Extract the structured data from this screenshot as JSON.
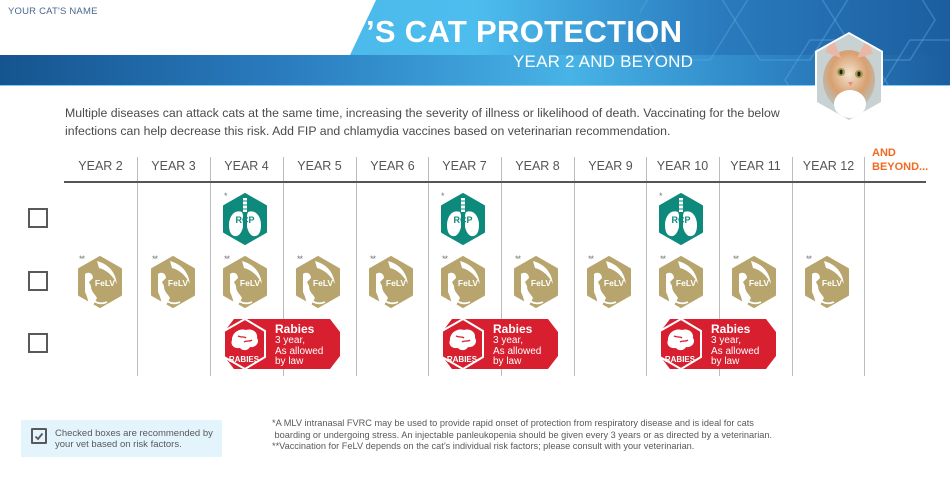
{
  "header": {
    "cat_name_label": "YOUR CAT'S NAME",
    "title": "’S CAT PROTECTION",
    "subtitle": "YEAR 2 AND BEYOND",
    "photo_alt": "orange-and-white kitten looking up"
  },
  "intro": "Multiple diseases can attack cats at the same time, increasing the severity of illness or likelihood of death. Vaccinating for the below infections can help decrease this risk. Add FIP and chlamydia vaccines based on veterinarian recommendation.",
  "schedule": {
    "columns": [
      "YEAR 2",
      "YEAR 3",
      "YEAR 4",
      "YEAR 5",
      "YEAR 6",
      "YEAR 7",
      "YEAR 8",
      "YEAR 9",
      "YEAR 10",
      "YEAR 11",
      "YEAR 12"
    ],
    "beyond_line1": "AND",
    "beyond_line2": "BEYOND...",
    "rows": [
      {
        "vaccine": "RCP",
        "marker": "*",
        "years": [
          "YEAR 4",
          "YEAR 7",
          "YEAR 10"
        ],
        "checked": false
      },
      {
        "vaccine": "FeLV",
        "marker": "**",
        "years": [
          "YEAR 2",
          "YEAR 3",
          "YEAR 4",
          "YEAR 5",
          "YEAR 6",
          "YEAR 7",
          "YEAR 8",
          "YEAR 9",
          "YEAR 10",
          "YEAR 11",
          "YEAR 12"
        ],
        "checked": false
      },
      {
        "vaccine": "RABIES",
        "title": "Rabies",
        "sub1": "3 year,",
        "sub2": "As allowed",
        "sub3": "by law",
        "years": [
          "YEAR 4",
          "YEAR 7",
          "YEAR 10"
        ],
        "checked": false
      }
    ]
  },
  "badges": {
    "rcp_label": "RCP",
    "felv_label": "FeLV",
    "rabies_label": "RABIES",
    "rabies_title": "Rabies",
    "rabies_sub1": "3 year,",
    "rabies_sub2": "As allowed",
    "rabies_sub3": "by law",
    "rcp_marker": "*",
    "felv_marker": "**"
  },
  "legend": {
    "text": "Checked boxes are recommended by your vet based on risk factors."
  },
  "footnotes": {
    "line1": "*A MLV intranasal FVRC may be used to provide rapid onset of protection from respiratory disease and is ideal for cats",
    "line2": " boarding or undergoing stress. An injectable panleukopenia should be given every 3 years or as directed by a veterinarian.",
    "line3": "**Vaccination for FeLV depends on the cat’s individual risk factors; please consult with your veterinarian."
  },
  "colors": {
    "brand_blue": "#2a7cbf",
    "light_blue": "#4dbdee",
    "rcp_teal": "#0e8a7c",
    "felv_gold": "#b7a56d",
    "rabies_red": "#d71f30",
    "beyond_orange": "#f26a21"
  }
}
